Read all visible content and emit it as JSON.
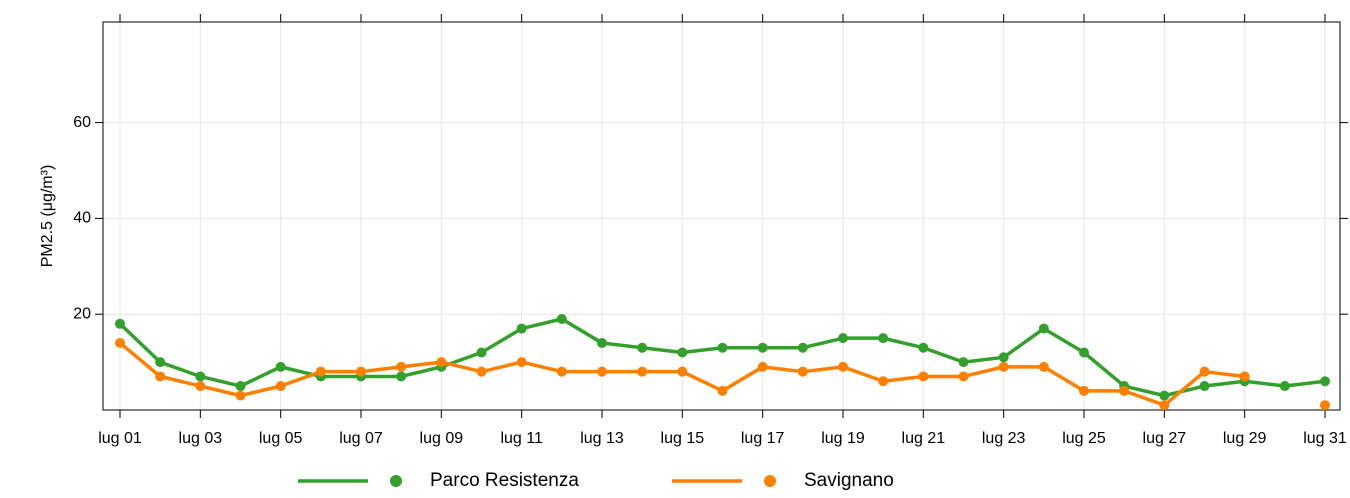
{
  "chart_data": {
    "type": "line",
    "y_label": "PM2.5 (μg/m³)",
    "categories": [
      "lug 01",
      null,
      "lug 03",
      null,
      "lug 05",
      null,
      "lug 07",
      null,
      "lug 09",
      null,
      "lug 11",
      null,
      "lug 13",
      null,
      "lug 15",
      null,
      "lug 17",
      null,
      "lug 19",
      null,
      "lug 21",
      null,
      "lug 23",
      null,
      "lug 25",
      null,
      "lug 27",
      null,
      "lug 29",
      null,
      "lug 31"
    ],
    "series": [
      {
        "name": "Parco Resistenza",
        "color": "#33a02c",
        "values": [
          18,
          10,
          7,
          5,
          9,
          7,
          7,
          7,
          9,
          12,
          17,
          19,
          14,
          13,
          12,
          13,
          13,
          13,
          15,
          15,
          13,
          10,
          11,
          17,
          12,
          5,
          3,
          5,
          6,
          5,
          6
        ]
      },
      {
        "name": "Savignano",
        "color": "#ff7f00",
        "values": [
          14,
          7,
          5,
          3,
          5,
          8,
          8,
          9,
          10,
          8,
          10,
          8,
          8,
          8,
          8,
          4,
          9,
          8,
          9,
          6,
          7,
          7,
          9,
          9,
          4,
          4,
          1,
          8,
          7,
          null,
          1
        ]
      }
    ],
    "ylim": [
      0,
      81
    ],
    "yticks": [
      20,
      40,
      60
    ],
    "grid": true,
    "legend": "bottom"
  }
}
